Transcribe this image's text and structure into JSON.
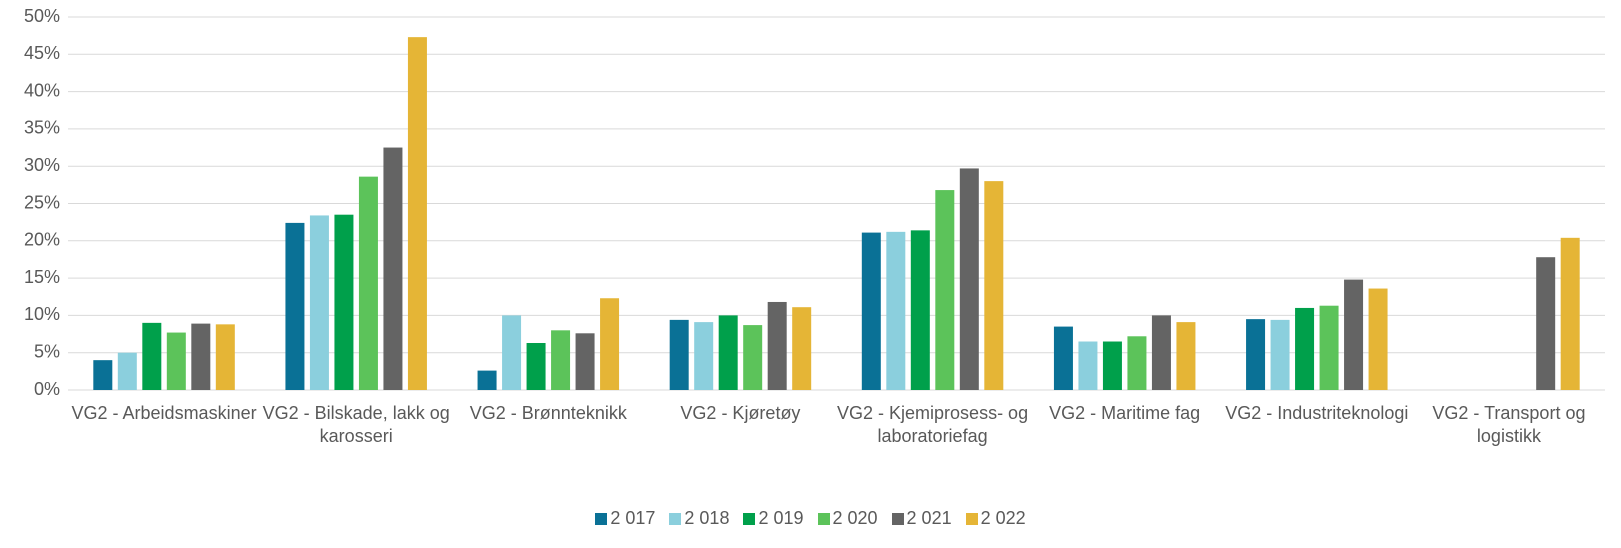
{
  "chart_data": {
    "type": "bar",
    "categories": [
      "VG2 - Arbeidsmaskiner",
      "VG2 - Bilskade, lakk og karosseri",
      "VG2 - Brønnteknikk",
      "VG2 - Kjøretøy",
      "VG2 - Kjemiprosess- og laboratoriefag",
      "VG2 - Maritime fag",
      "VG2 - Industriteknologi",
      "VG2 - Transport og logistikk"
    ],
    "series": [
      {
        "name": "2 017",
        "color": "#0a7196",
        "values": [
          4.0,
          22.4,
          2.6,
          9.4,
          21.1,
          8.5,
          9.5,
          null
        ]
      },
      {
        "name": "2 018",
        "color": "#8bcfdd",
        "values": [
          5.0,
          23.4,
          10.0,
          9.1,
          21.2,
          6.5,
          9.4,
          null
        ]
      },
      {
        "name": "2 019",
        "color": "#00a04b",
        "values": [
          9.0,
          23.5,
          6.3,
          10.0,
          21.4,
          6.5,
          11.0,
          null
        ]
      },
      {
        "name": "2 020",
        "color": "#5cc35a",
        "values": [
          7.7,
          28.6,
          8.0,
          8.7,
          26.8,
          7.2,
          11.3,
          null
        ]
      },
      {
        "name": "2 021",
        "color": "#646464",
        "values": [
          8.9,
          32.5,
          7.6,
          11.8,
          29.7,
          10.0,
          14.8,
          17.8
        ]
      },
      {
        "name": "2 022",
        "color": "#e5b536",
        "values": [
          8.8,
          47.3,
          12.3,
          11.1,
          28.0,
          9.1,
          13.6,
          20.4
        ]
      }
    ],
    "ylim": [
      0,
      50
    ],
    "yticks": [
      {
        "value": 0,
        "label": "0%"
      },
      {
        "value": 5,
        "label": "5%"
      },
      {
        "value": 10,
        "label": "10%"
      },
      {
        "value": 15,
        "label": "15%"
      },
      {
        "value": 20,
        "label": "20%"
      },
      {
        "value": 25,
        "label": "25%"
      },
      {
        "value": 30,
        "label": "30%"
      },
      {
        "value": 35,
        "label": "35%"
      },
      {
        "value": 40,
        "label": "40%"
      },
      {
        "value": 45,
        "label": "45%"
      },
      {
        "value": 50,
        "label": "50%"
      }
    ],
    "grid": true,
    "legend": "bottom"
  }
}
